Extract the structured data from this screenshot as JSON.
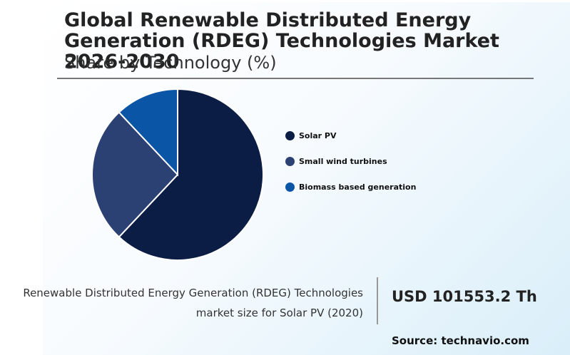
{
  "chart_data": {
    "type": "pie",
    "title": "Global Renewable Distributed Energy Generation (RDEG) Technologies Market 2026-2030",
    "subtitle": "Share by Technology (%)",
    "categories": [
      "Solar PV",
      "Small wind turbines",
      "Biomass based generation"
    ],
    "values": [
      62,
      26,
      12
    ],
    "colors": [
      "#0b1d45",
      "#2b4173",
      "#0a55a5"
    ],
    "legend_position": "right"
  },
  "caption": {
    "line1": "Renewable Distributed Energy Generation (RDEG) Technologies",
    "line2": "market size for Solar PV (2020)"
  },
  "kpi": {
    "value": "USD 101553.2 Th"
  },
  "source": "Source: technavio.com"
}
